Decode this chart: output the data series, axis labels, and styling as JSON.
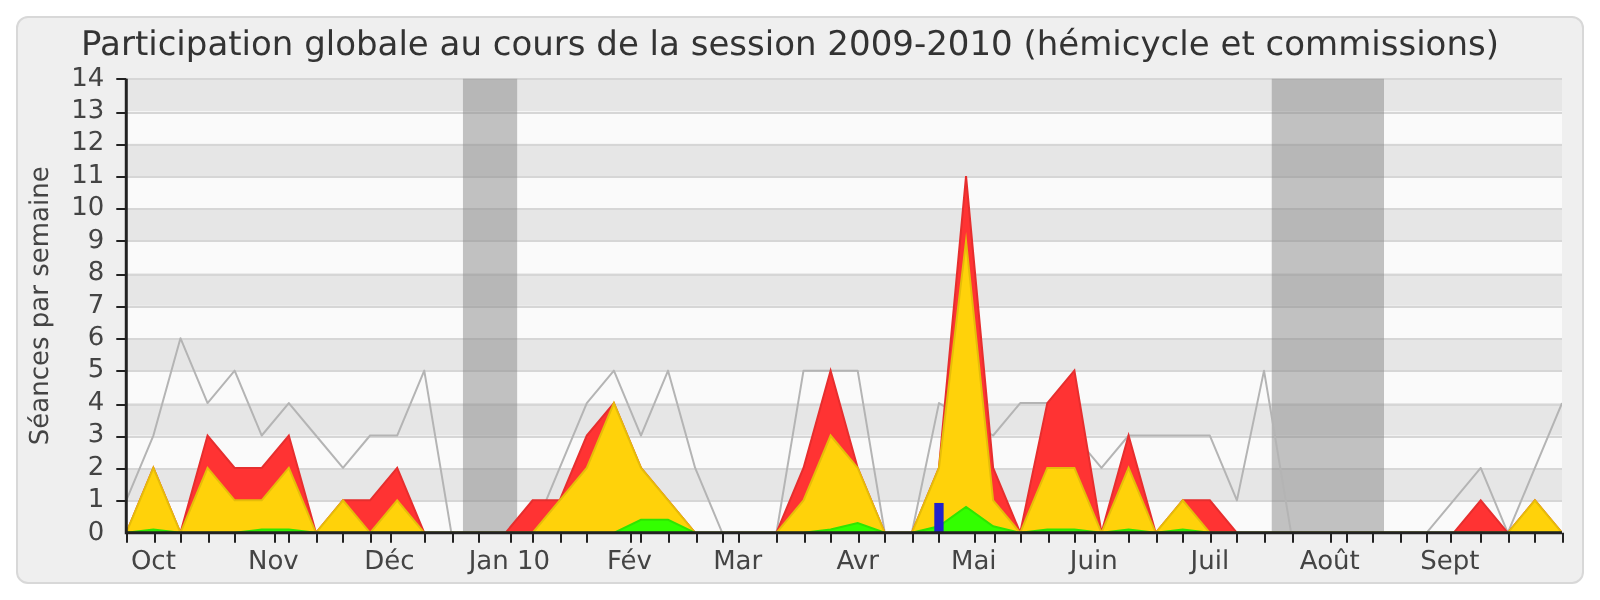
{
  "chart_data": {
    "type": "area",
    "title": "Participation globale au cours de la session 2009-2010 (hémicycle et commissions)",
    "ylabel": "Séances par semaine",
    "x": [
      "2009-09-24",
      "2009-10-01",
      "2009-10-08",
      "2009-10-15",
      "2009-10-22",
      "2009-10-29",
      "2009-11-05",
      "2009-11-12",
      "2009-11-19",
      "2009-11-26",
      "2009-12-03",
      "2009-12-10",
      "2009-12-17",
      "2009-12-24",
      "2009-12-31",
      "2010-01-07",
      "2010-01-14",
      "2010-01-21",
      "2010-01-28",
      "2010-02-04",
      "2010-02-11",
      "2010-02-18",
      "2010-02-25",
      "2010-03-04",
      "2010-03-11",
      "2010-03-18",
      "2010-03-25",
      "2010-04-01",
      "2010-04-08",
      "2010-04-15",
      "2010-04-22",
      "2010-04-29",
      "2010-05-06",
      "2010-05-13",
      "2010-05-20",
      "2010-05-27",
      "2010-06-03",
      "2010-06-10",
      "2010-06-17",
      "2010-06-24",
      "2010-07-01",
      "2010-07-08",
      "2010-07-15",
      "2010-07-22",
      "2010-07-29",
      "2010-08-05",
      "2010-08-12",
      "2010-08-19",
      "2010-08-26",
      "2010-09-02",
      "2010-09-09",
      "2010-09-16",
      "2010-09-23",
      "2010-09-30"
    ],
    "series": [
      {
        "type": "line",
        "color": "#b4b4b4",
        "values": [
          1,
          3,
          6,
          4,
          5,
          3,
          4,
          3,
          2,
          3,
          3,
          5,
          0,
          0,
          0,
          0,
          2,
          4,
          5,
          3,
          5,
          2,
          0,
          0,
          0,
          5,
          5,
          5,
          0,
          0,
          4,
          null,
          3,
          4,
          4,
          null,
          2,
          3,
          3,
          3,
          3,
          1,
          5,
          0,
          0,
          0,
          0,
          0,
          0,
          1,
          2,
          0,
          2,
          4
        ]
      },
      {
        "color": "#ff3333",
        "values": [
          0,
          2,
          0,
          3,
          2,
          2,
          3,
          0,
          1,
          1,
          2,
          0,
          0,
          0,
          0,
          1,
          1,
          3,
          4,
          2,
          1,
          0,
          0,
          0,
          0,
          2,
          5,
          2,
          0,
          0,
          2,
          11,
          2,
          0,
          4,
          5,
          0,
          3,
          0,
          1,
          1,
          0,
          0,
          0,
          0,
          0,
          0,
          0,
          0,
          0,
          1,
          0,
          1,
          0
        ]
      },
      {
        "color": "#ffd20a",
        "values": [
          0,
          2,
          0,
          2,
          1,
          1,
          2,
          0,
          1,
          0,
          1,
          0,
          0,
          0,
          0,
          0,
          1,
          2,
          4,
          2,
          1,
          0,
          0,
          0,
          0,
          1,
          3,
          2,
          0,
          0,
          2,
          9,
          1,
          0,
          2,
          2,
          0,
          2,
          0,
          1,
          0,
          0,
          0,
          0,
          0,
          0,
          0,
          0,
          0,
          0,
          0,
          0,
          1,
          0
        ]
      },
      {
        "color": "#33ff00",
        "values": [
          0,
          0.1,
          0,
          0,
          0,
          0.1,
          0.1,
          0,
          0,
          0,
          0,
          0,
          0,
          0,
          0,
          0,
          0,
          0,
          0,
          0.4,
          0.4,
          0,
          0,
          0,
          0,
          0,
          0.1,
          0.3,
          0,
          0,
          0.2,
          0.8,
          0.2,
          0,
          0.1,
          0.1,
          0,
          0.1,
          0,
          0.1,
          0,
          0,
          0,
          0,
          0,
          0,
          0,
          0,
          0,
          0,
          0,
          0,
          0,
          0
        ]
      },
      {
        "type": "bar",
        "color": "#2222cc",
        "values": [
          null,
          null,
          null,
          null,
          null,
          null,
          null,
          null,
          null,
          null,
          null,
          null,
          null,
          null,
          null,
          null,
          null,
          null,
          null,
          null,
          null,
          null,
          null,
          null,
          null,
          null,
          null,
          null,
          null,
          null,
          0.9,
          null,
          null,
          null,
          null,
          null,
          null,
          null,
          null,
          null,
          null,
          null,
          null,
          null,
          null,
          null,
          null,
          null,
          null,
          null,
          null,
          null,
          null,
          null
        ]
      }
    ],
    "xlim": [
      "2009-09-24",
      "2010-09-30"
    ],
    "xticks": [
      {
        "value": "2009-09-24",
        "label": null
      },
      {
        "value": "2009-10-01",
        "label": "Oct"
      },
      {
        "value": "2009-10-08",
        "label": null
      },
      {
        "value": "2009-10-15",
        "label": null
      },
      {
        "value": "2009-10-22",
        "label": null
      },
      {
        "value": "2009-11-01",
        "label": "Nov"
      },
      {
        "value": "2009-11-05",
        "label": null
      },
      {
        "value": "2009-11-12",
        "label": null
      },
      {
        "value": "2009-11-19",
        "label": null
      },
      {
        "value": "2009-11-26",
        "label": null
      },
      {
        "value": "2009-12-01",
        "label": "Déc"
      },
      {
        "value": "2009-12-10",
        "label": null
      },
      {
        "value": "2009-12-17",
        "label": null
      },
      {
        "value": "2009-12-24",
        "label": null
      },
      {
        "value": "2010-01-01",
        "label": "Jan 10"
      },
      {
        "value": "2010-01-07",
        "label": null
      },
      {
        "value": "2010-01-14",
        "label": null
      },
      {
        "value": "2010-01-21",
        "label": null
      },
      {
        "value": "2010-02-01",
        "label": "Fév"
      },
      {
        "value": "2010-02-04",
        "label": null
      },
      {
        "value": "2010-02-11",
        "label": null
      },
      {
        "value": "2010-02-18",
        "label": null
      },
      {
        "value": "2010-02-25",
        "label": null
      },
      {
        "value": "2010-03-01",
        "label": "Mar"
      },
      {
        "value": "2010-03-11",
        "label": null
      },
      {
        "value": "2010-03-18",
        "label": null
      },
      {
        "value": "2010-03-25",
        "label": null
      },
      {
        "value": "2010-04-01",
        "label": "Avr"
      },
      {
        "value": "2010-04-08",
        "label": null
      },
      {
        "value": "2010-04-15",
        "label": null
      },
      {
        "value": "2010-04-22",
        "label": null
      },
      {
        "value": "2010-05-01",
        "label": "Mai"
      },
      {
        "value": "2010-05-06",
        "label": null
      },
      {
        "value": "2010-05-13",
        "label": null
      },
      {
        "value": "2010-05-20",
        "label": null
      },
      {
        "value": "2010-05-27",
        "label": null
      },
      {
        "value": "2010-06-01",
        "label": "Juin"
      },
      {
        "value": "2010-06-10",
        "label": null
      },
      {
        "value": "2010-06-17",
        "label": null
      },
      {
        "value": "2010-06-24",
        "label": null
      },
      {
        "value": "2010-07-01",
        "label": "Juil"
      },
      {
        "value": "2010-07-08",
        "label": null
      },
      {
        "value": "2010-07-15",
        "label": null
      },
      {
        "value": "2010-07-22",
        "label": null
      },
      {
        "value": "2010-08-01",
        "label": "Août"
      },
      {
        "value": "2010-08-05",
        "label": null
      },
      {
        "value": "2010-08-12",
        "label": null
      },
      {
        "value": "2010-08-19",
        "label": null
      },
      {
        "value": "2010-08-26",
        "label": null
      },
      {
        "value": "2010-09-01",
        "label": "Sept"
      },
      {
        "value": "2010-09-09",
        "label": null
      },
      {
        "value": "2010-09-16",
        "label": null
      },
      {
        "value": "2010-09-23",
        "label": null
      },
      {
        "value": "2010-09-30",
        "label": null
      }
    ],
    "ylim": [
      0,
      14
    ],
    "yticks": [
      0,
      1,
      2,
      3,
      4,
      5,
      6,
      7,
      8,
      9,
      10,
      11,
      12,
      13,
      14
    ],
    "bands": [
      {
        "axis": "x",
        "from": "2009-12-20",
        "to": "2010-01-03",
        "color": "#888888"
      },
      {
        "axis": "x",
        "from": "2010-07-17",
        "to": "2010-08-15",
        "color": "#888888"
      }
    ],
    "grid": "y",
    "legend": false,
    "marker": "none"
  }
}
